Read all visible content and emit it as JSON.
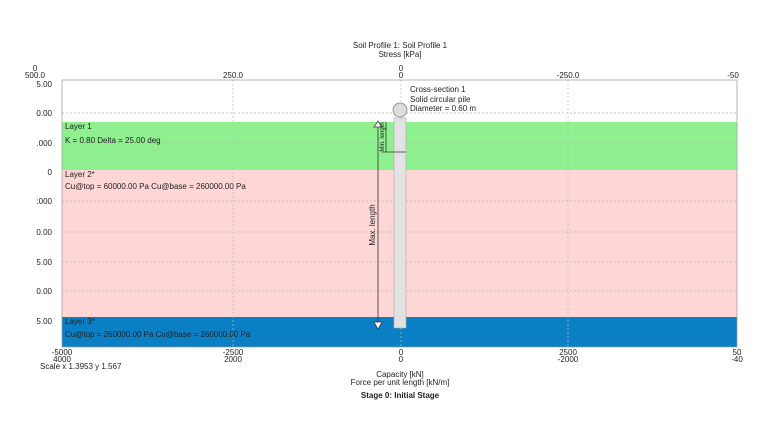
{
  "header": {
    "title": "Soil Profile 1: Soil Profile 1",
    "top_axis_label": "Stress [kPa]"
  },
  "top_axis": {
    "row1": [
      "0",
      "0"
    ],
    "row2": [
      "500.0",
      "250.0",
      "0",
      "-250.0",
      "-50"
    ]
  },
  "left_axis": [
    "5.00",
    "0.00",
    ".000",
    "0",
    ":000",
    "0.00",
    "5.00",
    "0.00",
    "5.00"
  ],
  "layers": [
    {
      "name": "Layer 1",
      "props": "K = 0.80 Delta = 25.00 deg"
    },
    {
      "name": "Layer 2*",
      "props": "Cu@top = 60000.00 Pa Cu@base = 260000.00 Pa"
    },
    {
      "name": "Layer 3*",
      "props": "Cu@top = 260000.00 Pa Cu@base = 260000.00 Pa"
    }
  ],
  "pile": {
    "section": "Cross-section 1",
    "kind": "Solid circular pile",
    "diameter": "Diameter = 0.60 m",
    "max_length": "Max. length",
    "min_length": "Min. length"
  },
  "bottom_axis": {
    "row1": [
      "-5000",
      "-2500",
      "0",
      "2500",
      "50"
    ],
    "row2": [
      "4000",
      "2000",
      "0",
      "-2000",
      "-40"
    ],
    "label1": "Capacity [kN]",
    "label2": "Force per unit length [kN/m]"
  },
  "scale": "Scale x 1.3953  y 1.567",
  "footer": "Stage 0: Initial Stage"
}
